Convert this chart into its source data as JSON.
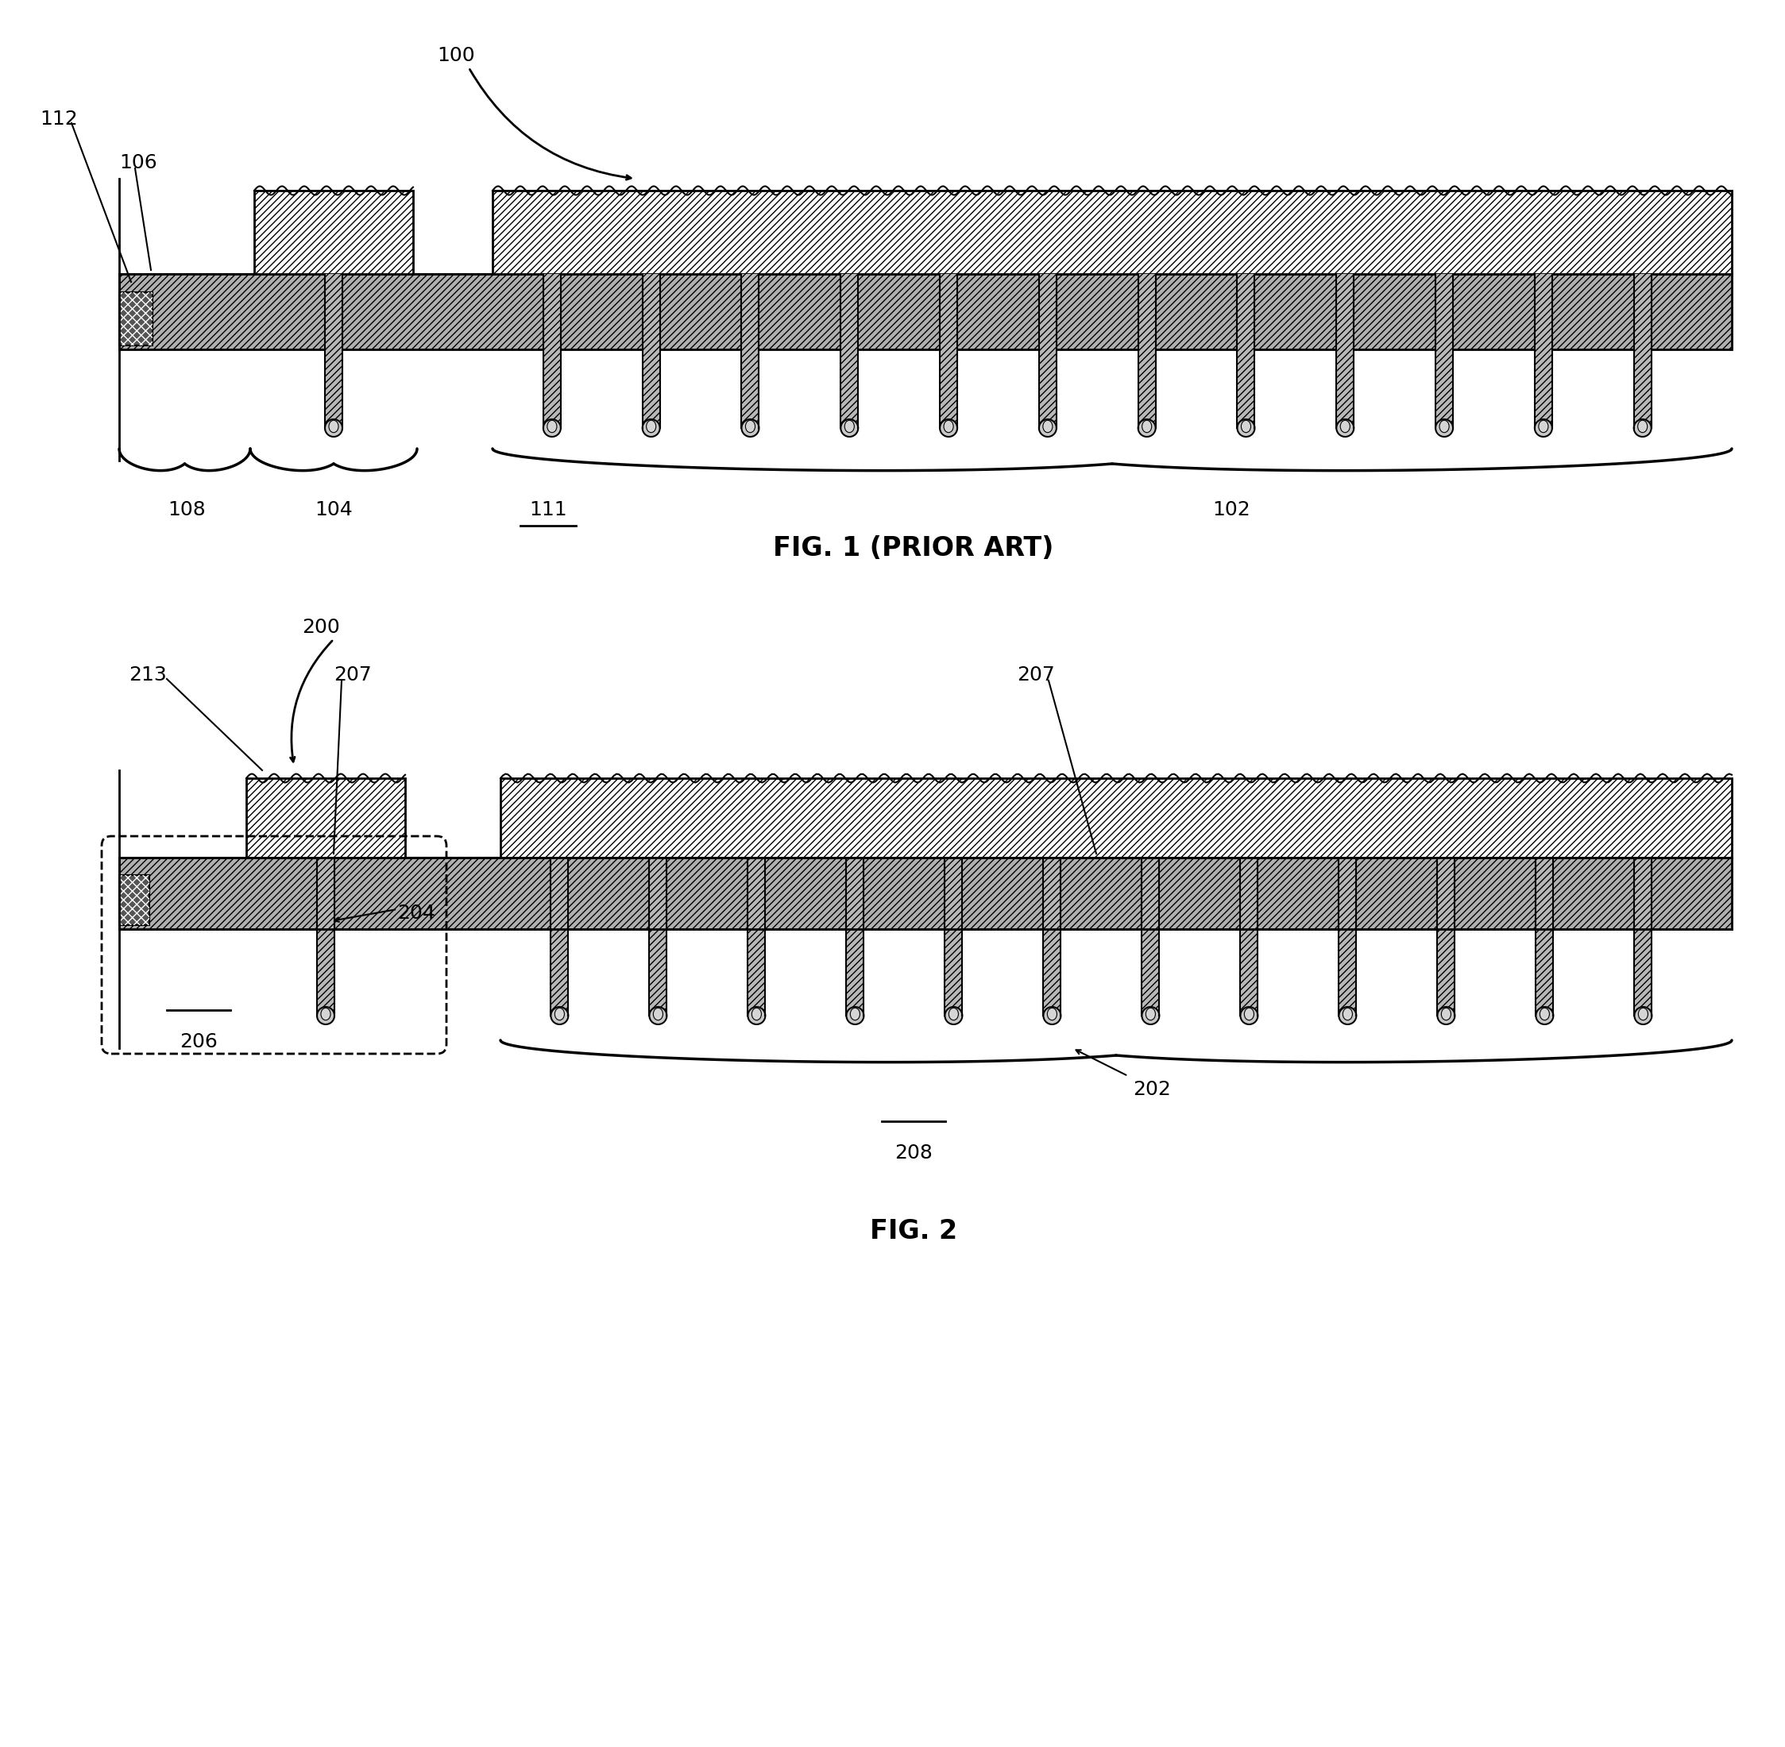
{
  "fig_width": 22.47,
  "fig_height": 22.0,
  "bg_color": "#ffffff",
  "fig1": {
    "title": "FIG. 1 (PRIOR ART)",
    "label_100": "100",
    "label_112": "112",
    "label_106": "106",
    "label_108": "108",
    "label_104": "104",
    "label_111": "111",
    "label_102": "102"
  },
  "fig2": {
    "title": "FIG. 2",
    "label_200": "200",
    "label_213": "213",
    "label_207a": "207",
    "label_207b": "207",
    "label_204": "204",
    "label_206": "206",
    "label_202": "202",
    "label_208": "208"
  },
  "lc": "#000000",
  "body_color": "#a0a0a0",
  "gate_color": "#e8e8e8",
  "trench_fill": "#c0c0c0",
  "trench_inner": "#d8d8d8",
  "pad_color": "#606060"
}
